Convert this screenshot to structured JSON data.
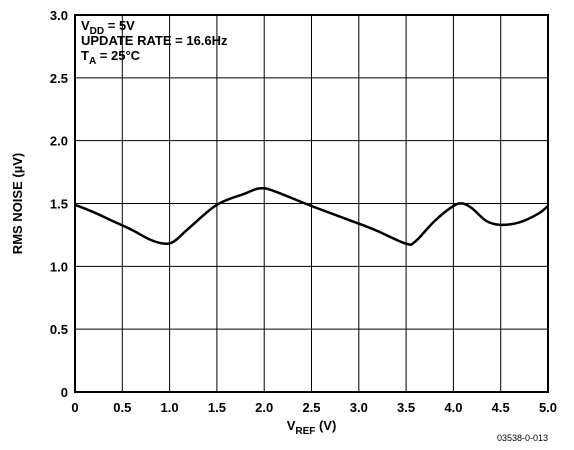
{
  "chart_data": {
    "type": "line",
    "xlabel": {
      "main": "V",
      "sub": "REF",
      "unit": " (V)"
    },
    "ylabel": "RMS NOISE (µV)",
    "xlim": [
      0,
      5.0
    ],
    "ylim": [
      0,
      3.0
    ],
    "xticks": [
      "0",
      "0.5",
      "1.0",
      "1.5",
      "2.0",
      "2.5",
      "3.0",
      "3.5",
      "4.0",
      "4.5",
      "5.0"
    ],
    "yticks": [
      "0",
      "0.5",
      "1.0",
      "1.5",
      "2.0",
      "2.5",
      "3.0"
    ],
    "grid": true,
    "annotations": [
      {
        "main": "V",
        "sub": "DD",
        "rest": " = 5V"
      },
      {
        "main": "UPDATE RATE = 16.6Hz",
        "sub": "",
        "rest": ""
      },
      {
        "main": "T",
        "sub": "A",
        "rest": " = 25°C"
      }
    ],
    "series": [
      {
        "x": [
          0.0,
          0.2,
          0.4,
          0.6,
          0.8,
          0.95,
          1.05,
          1.2,
          1.5,
          1.8,
          1.95,
          2.1,
          2.5,
          3.0,
          3.2,
          3.5,
          3.6,
          3.8,
          4.0,
          4.1,
          4.2,
          4.35,
          4.5,
          4.7,
          4.9,
          5.0
        ],
        "y": [
          1.49,
          1.43,
          1.36,
          1.29,
          1.21,
          1.18,
          1.2,
          1.3,
          1.49,
          1.58,
          1.62,
          1.6,
          1.48,
          1.34,
          1.28,
          1.18,
          1.2,
          1.36,
          1.48,
          1.5,
          1.46,
          1.36,
          1.33,
          1.35,
          1.42,
          1.48
        ]
      }
    ]
  },
  "footnote": "03538-0-013"
}
